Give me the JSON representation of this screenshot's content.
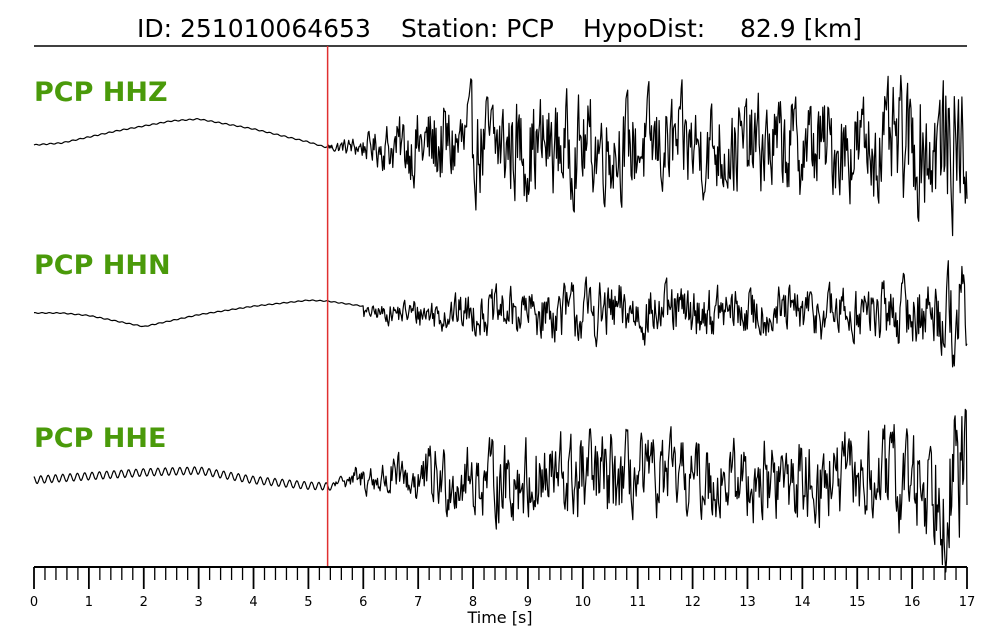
{
  "title": {
    "id_text": "ID: 251010064653",
    "station_text": "Station: PCP",
    "dist_text": "HypoDist:",
    "dist_value": "82.9 [km]"
  },
  "colors": {
    "channel_label": "#4a9a0a",
    "pick_line": "#e03030",
    "trace": "#000000"
  },
  "chart_data": {
    "type": "line",
    "xlabel": "Time [s]",
    "xlim": [
      0,
      17
    ],
    "x_tick_labels": [
      "0",
      "1",
      "2",
      "3",
      "4",
      "5",
      "6",
      "7",
      "8",
      "9",
      "10",
      "11",
      "12",
      "13",
      "14",
      "15",
      "16",
      "17"
    ],
    "minor_tick_interval": 0.2,
    "p_pick_time": 5.35,
    "series": [
      {
        "name": "PCP HHZ",
        "noise_shape": [
          [
            0,
            0.02
          ],
          [
            0.5,
            0.04
          ],
          [
            1.5,
            0.16
          ],
          [
            2.5,
            0.26
          ],
          [
            3.0,
            0.28
          ],
          [
            4.0,
            0.18
          ],
          [
            5.0,
            0.05
          ],
          [
            5.3,
            0.0
          ]
        ],
        "noise_ripple": 0.005,
        "signal_envelope": [
          [
            5.35,
            0.05
          ],
          [
            6.0,
            0.15
          ],
          [
            6.6,
            0.35
          ],
          [
            7.2,
            0.55
          ],
          [
            8.5,
            0.65
          ],
          [
            10,
            0.6
          ],
          [
            12,
            0.6
          ],
          [
            14,
            0.6
          ],
          [
            15.5,
            0.65
          ],
          [
            16.2,
            0.85
          ],
          [
            16.9,
            0.9
          ],
          [
            17,
            0.9
          ]
        ]
      },
      {
        "name": "PCP HHN",
        "noise_shape": [
          [
            0,
            0.0
          ],
          [
            0.5,
            0.0
          ],
          [
            1.0,
            -0.03
          ],
          [
            2.0,
            -0.16
          ],
          [
            3.0,
            -0.02
          ],
          [
            4.0,
            0.08
          ],
          [
            5.0,
            0.15
          ],
          [
            5.35,
            0.14
          ],
          [
            6.0,
            0.08
          ]
        ],
        "noise_ripple": 0.005,
        "signal_envelope": [
          [
            6.0,
            0.08
          ],
          [
            6.8,
            0.2
          ],
          [
            8.0,
            0.3
          ],
          [
            9.5,
            0.4
          ],
          [
            10,
            0.45
          ],
          [
            11,
            0.4
          ],
          [
            13,
            0.35
          ],
          [
            15,
            0.4
          ],
          [
            16.5,
            0.55
          ],
          [
            16.8,
            0.8
          ],
          [
            17,
            0.6
          ]
        ]
      },
      {
        "name": "PCP HHE",
        "noise_shape": [
          [
            0,
            0.0
          ],
          [
            1.0,
            0.04
          ],
          [
            2.0,
            0.08
          ],
          [
            3.0,
            0.1
          ],
          [
            4.0,
            0.0
          ],
          [
            5.0,
            -0.06
          ],
          [
            5.5,
            -0.07
          ]
        ],
        "noise_ripple": 0.04,
        "signal_envelope": [
          [
            5.6,
            0.08
          ],
          [
            6.2,
            0.2
          ],
          [
            7.0,
            0.35
          ],
          [
            8.0,
            0.45
          ],
          [
            9.0,
            0.55
          ],
          [
            10,
            0.6
          ],
          [
            11,
            0.5
          ],
          [
            13,
            0.5
          ],
          [
            15,
            0.55
          ],
          [
            16,
            0.7
          ],
          [
            16.6,
            0.9
          ],
          [
            17,
            0.95
          ]
        ]
      }
    ]
  }
}
